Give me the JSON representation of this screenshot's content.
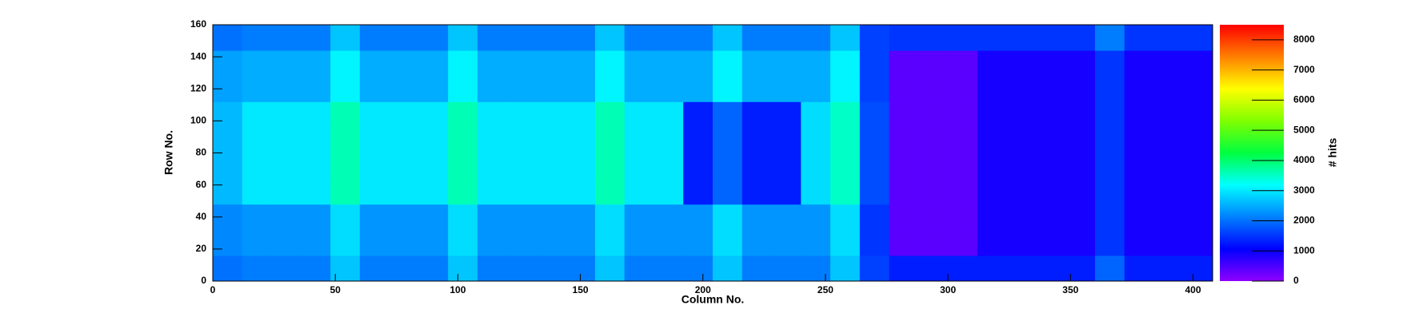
{
  "chart_data": {
    "type": "heatmap",
    "x_label": "Column No.",
    "y_label": "Row No.",
    "z_label": "# hits",
    "x_bins": [
      0,
      12,
      24,
      36,
      48,
      60,
      72,
      84,
      96,
      108,
      120,
      132,
      144,
      156,
      168,
      180,
      192,
      204,
      216,
      228,
      240,
      252,
      264,
      276,
      288,
      300,
      312,
      324,
      336,
      348,
      360,
      372,
      384,
      396,
      408
    ],
    "y_bins": [
      0,
      16,
      32,
      48,
      64,
      80,
      96,
      112,
      128,
      144,
      160
    ],
    "z": [
      [
        2000,
        2100,
        2100,
        2100,
        2700,
        2100,
        2100,
        2100,
        2700,
        2100,
        2100,
        2100,
        2100,
        2700,
        2100,
        2100,
        2100,
        2700,
        2100,
        2100,
        2100,
        2700,
        1600,
        1300,
        1300,
        1300,
        1300,
        1300,
        1300,
        1300,
        1900,
        1300,
        1300,
        1300
      ],
      [
        2200,
        2300,
        2300,
        2300,
        2900,
        2300,
        2300,
        2300,
        2900,
        2300,
        2300,
        2300,
        2300,
        2900,
        2300,
        2300,
        2300,
        2900,
        2300,
        2300,
        2300,
        2900,
        1500,
        400,
        400,
        400,
        900,
        900,
        900,
        900,
        1500,
        900,
        900,
        900
      ],
      [
        2200,
        2300,
        2300,
        2300,
        2900,
        2300,
        2300,
        2300,
        2900,
        2300,
        2300,
        2300,
        2300,
        2900,
        2300,
        2300,
        2300,
        2900,
        2300,
        2300,
        2300,
        2900,
        1500,
        400,
        400,
        400,
        900,
        900,
        900,
        900,
        1500,
        900,
        900,
        900
      ],
      [
        2600,
        3000,
        3000,
        3000,
        3600,
        3000,
        3000,
        3000,
        3600,
        3000,
        3000,
        3000,
        3000,
        3600,
        3000,
        3000,
        1300,
        1900,
        1300,
        1300,
        2900,
        3500,
        1700,
        400,
        400,
        400,
        900,
        900,
        900,
        900,
        1500,
        900,
        900,
        900
      ],
      [
        2600,
        3000,
        3000,
        3000,
        3600,
        3000,
        3000,
        3000,
        3600,
        3000,
        3000,
        3000,
        3000,
        3600,
        3000,
        3000,
        1300,
        1900,
        1300,
        1300,
        2900,
        3500,
        1700,
        400,
        400,
        400,
        900,
        900,
        900,
        900,
        1500,
        900,
        900,
        900
      ],
      [
        2600,
        3000,
        3000,
        3000,
        3600,
        3000,
        3000,
        3000,
        3600,
        3000,
        3000,
        3000,
        3000,
        3600,
        3000,
        3000,
        1300,
        1900,
        1300,
        1300,
        2900,
        3500,
        1700,
        400,
        400,
        400,
        900,
        900,
        900,
        900,
        1500,
        900,
        900,
        900
      ],
      [
        2600,
        3000,
        3000,
        3000,
        3600,
        3000,
        3000,
        3000,
        3600,
        3000,
        3000,
        3000,
        3000,
        3600,
        3000,
        3000,
        1300,
        1900,
        1300,
        1300,
        2900,
        3500,
        1700,
        400,
        400,
        400,
        900,
        900,
        900,
        900,
        1500,
        900,
        900,
        900
      ],
      [
        2400,
        2500,
        2500,
        2500,
        3100,
        2500,
        2500,
        2500,
        3100,
        2500,
        2500,
        2500,
        2500,
        3100,
        2500,
        2500,
        2500,
        3100,
        2500,
        2500,
        2500,
        3100,
        1600,
        400,
        400,
        400,
        900,
        900,
        900,
        900,
        1500,
        900,
        900,
        900
      ],
      [
        2400,
        2500,
        2500,
        2500,
        3100,
        2500,
        2500,
        2500,
        3100,
        2500,
        2500,
        2500,
        2500,
        3100,
        2500,
        2500,
        2500,
        3100,
        2500,
        2500,
        2500,
        3100,
        1600,
        400,
        400,
        400,
        900,
        900,
        900,
        900,
        1500,
        900,
        900,
        900
      ],
      [
        2000,
        2100,
        2100,
        2100,
        2700,
        2100,
        2100,
        2100,
        2700,
        2100,
        2100,
        2100,
        2100,
        2700,
        2100,
        2100,
        2100,
        2700,
        2100,
        2100,
        2100,
        2700,
        1600,
        1500,
        1500,
        1500,
        1500,
        1500,
        1500,
        1500,
        2100,
        1500,
        1500,
        1500
      ]
    ],
    "xlim": [
      0,
      408
    ],
    "xticks": [
      0,
      50,
      100,
      150,
      200,
      250,
      300,
      350,
      400
    ],
    "ylim": [
      0,
      160
    ],
    "yticks": [
      0,
      20,
      40,
      60,
      80,
      100,
      120,
      140,
      160
    ],
    "zlim": [
      0,
      8500
    ],
    "zticks": [
      0,
      1000,
      2000,
      3000,
      4000,
      5000,
      6000,
      7000,
      8000
    ],
    "colorscale": [
      "#8f00ff",
      "#0000ff",
      "#0080ff",
      "#00ffff",
      "#00ff40",
      "#80ff00",
      "#ffff00",
      "#ff8000",
      "#ff0000"
    ]
  }
}
